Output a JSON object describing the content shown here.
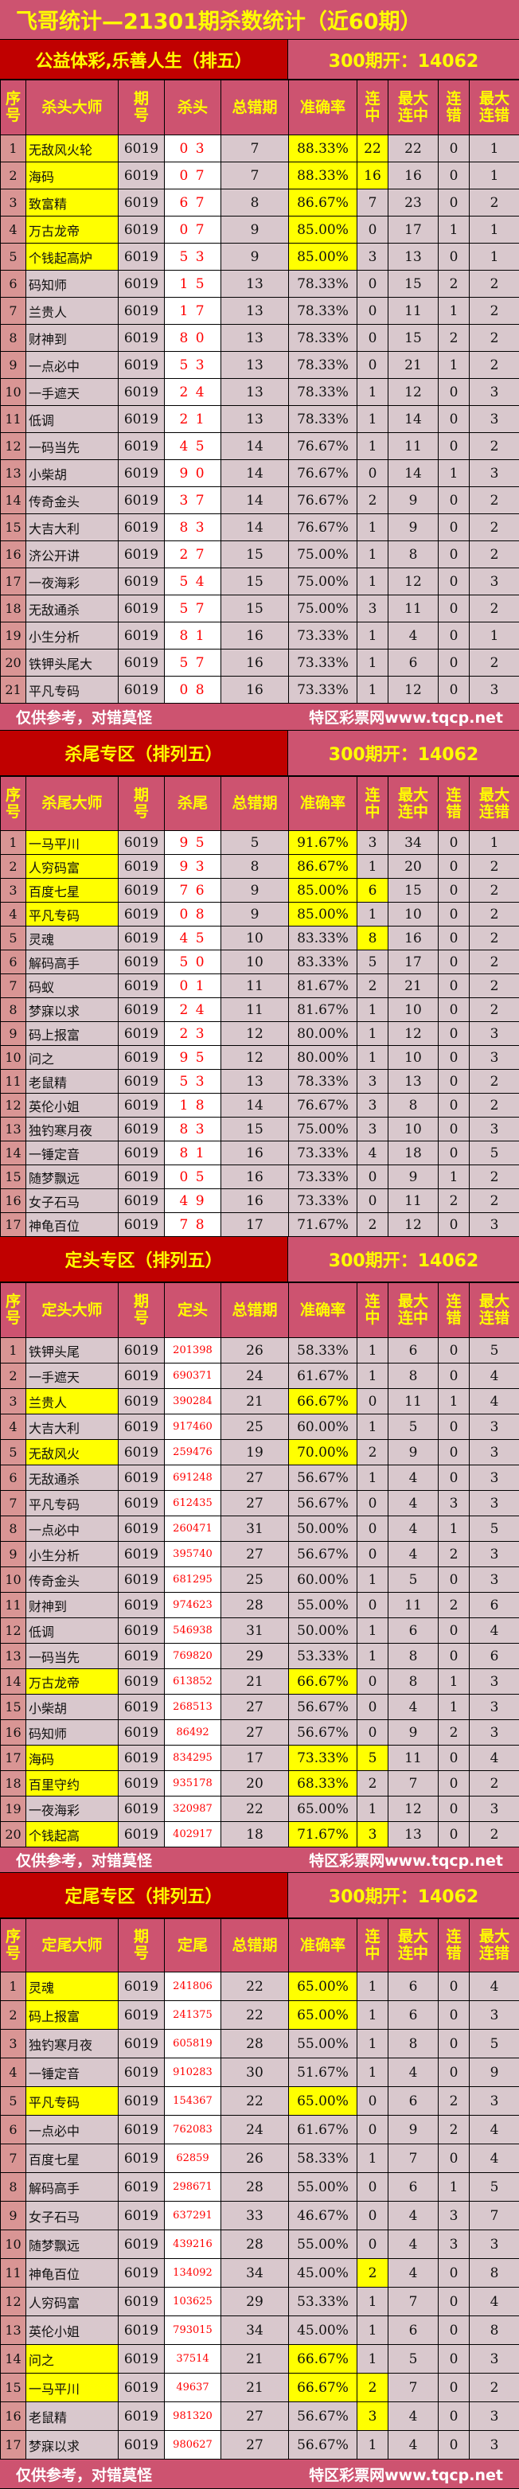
{
  "title": "飞哥统计—21301期杀数统计（近60期）",
  "footer": {
    "left": "仅供参考，对错莫怪",
    "right": "特区彩票网www.tqcp.net"
  },
  "colors": {
    "header_bg": "#cd5370",
    "section_bg": "#c00000",
    "header_text": "#ffff00",
    "highlight": "#ffff00",
    "number_text": "#ff0000"
  },
  "sections": [
    {
      "label": "公益体彩,乐善人生（排五）",
      "open": "300期开：14062",
      "headers": [
        "序号",
        "杀头大师",
        "期\n号",
        "杀头",
        "总错期",
        "准确率",
        "连\n中",
        "最大\n连中",
        "连\n错",
        "最大\n连错"
      ],
      "rows": [
        [
          "1",
          "无敌风火轮",
          "6019",
          "0 3",
          "7",
          "88.33%",
          "22",
          "22",
          "0",
          "1"
        ],
        [
          "2",
          "海码",
          "6019",
          "0 7",
          "7",
          "88.33%",
          "16",
          "16",
          "0",
          "1"
        ],
        [
          "3",
          "致富精",
          "6019",
          "6 7",
          "8",
          "86.67%",
          "7",
          "23",
          "0",
          "2"
        ],
        [
          "4",
          "万古龙帝",
          "6019",
          "0 7",
          "9",
          "85.00%",
          "0",
          "17",
          "1",
          "1"
        ],
        [
          "5",
          "个钱起高炉",
          "6019",
          "5 3",
          "9",
          "85.00%",
          "3",
          "13",
          "0",
          "1"
        ],
        [
          "6",
          "码知师",
          "6019",
          "1 5",
          "13",
          "78.33%",
          "0",
          "15",
          "2",
          "2"
        ],
        [
          "7",
          "兰贵人",
          "6019",
          "1 7",
          "13",
          "78.33%",
          "0",
          "11",
          "1",
          "2"
        ],
        [
          "8",
          "财神到",
          "6019",
          "8 0",
          "13",
          "78.33%",
          "0",
          "15",
          "2",
          "2"
        ],
        [
          "9",
          "一点必中",
          "6019",
          "5 3",
          "13",
          "78.33%",
          "0",
          "21",
          "1",
          "2"
        ],
        [
          "10",
          "一手遮天",
          "6019",
          "2 4",
          "13",
          "78.33%",
          "1",
          "12",
          "0",
          "3"
        ],
        [
          "11",
          "低调",
          "6019",
          "2 1",
          "13",
          "78.33%",
          "1",
          "14",
          "0",
          "3"
        ],
        [
          "12",
          "一码当先",
          "6019",
          "4 5",
          "14",
          "76.67%",
          "1",
          "11",
          "0",
          "2"
        ],
        [
          "13",
          "小柴胡",
          "6019",
          "9 0",
          "14",
          "76.67%",
          "0",
          "14",
          "1",
          "3"
        ],
        [
          "14",
          "传奇金头",
          "6019",
          "3 7",
          "14",
          "76.67%",
          "2",
          "9",
          "0",
          "2"
        ],
        [
          "15",
          "大吉大利",
          "6019",
          "8 3",
          "14",
          "76.67%",
          "1",
          "9",
          "0",
          "2"
        ],
        [
          "16",
          "济公开讲",
          "6019",
          "2 7",
          "15",
          "75.00%",
          "1",
          "8",
          "0",
          "2"
        ],
        [
          "17",
          "一夜海彩",
          "6019",
          "5 4",
          "15",
          "75.00%",
          "1",
          "12",
          "0",
          "3"
        ],
        [
          "18",
          "无敌通杀",
          "6019",
          "5 7",
          "15",
          "75.00%",
          "3",
          "11",
          "0",
          "2"
        ],
        [
          "19",
          "小生分析",
          "6019",
          "8 1",
          "16",
          "73.33%",
          "1",
          "4",
          "0",
          "1"
        ],
        [
          "20",
          "铁钾头尾大",
          "6019",
          "5 7",
          "16",
          "73.33%",
          "1",
          "6",
          "0",
          "2"
        ],
        [
          "21",
          "平凡专码",
          "6019",
          "0 8",
          "16",
          "73.33%",
          "1",
          "12",
          "0",
          "3"
        ]
      ],
      "highlights": [
        [
          1,
          5,
          6
        ],
        [
          1,
          5,
          6
        ],
        [
          1,
          5
        ],
        [
          1,
          5
        ],
        [
          1,
          5
        ]
      ]
    },
    {
      "label": "杀尾专区（排列五）",
      "open": "300期开：14062",
      "headers": [
        "序号",
        "杀尾大师",
        "期\n号",
        "杀尾",
        "总错期",
        "准确率",
        "连\n中",
        "最大\n连中",
        "连\n错",
        "最大\n连错"
      ],
      "rows": [
        [
          "1",
          "一马平川",
          "6019",
          "9 5",
          "5",
          "91.67%",
          "3",
          "34",
          "0",
          "1"
        ],
        [
          "2",
          "人穷码富",
          "6019",
          "9 3",
          "8",
          "86.67%",
          "1",
          "20",
          "0",
          "2"
        ],
        [
          "3",
          "百度七星",
          "6019",
          "7 6",
          "9",
          "85.00%",
          "6",
          "15",
          "0",
          "2"
        ],
        [
          "4",
          "平凡专码",
          "6019",
          "0 8",
          "9",
          "85.00%",
          "1",
          "10",
          "0",
          "2"
        ],
        [
          "5",
          "灵魂",
          "6019",
          "4 5",
          "10",
          "83.33%",
          "8",
          "16",
          "0",
          "2"
        ],
        [
          "6",
          "解码高手",
          "6019",
          "5 0",
          "10",
          "83.33%",
          "5",
          "17",
          "0",
          "2"
        ],
        [
          "7",
          "码蚁",
          "6019",
          "0 1",
          "11",
          "81.67%",
          "2",
          "21",
          "0",
          "2"
        ],
        [
          "8",
          "梦寐以求",
          "6019",
          "2 4",
          "11",
          "81.67%",
          "1",
          "10",
          "0",
          "2"
        ],
        [
          "9",
          "码上报富",
          "6019",
          "2 3",
          "12",
          "80.00%",
          "1",
          "12",
          "0",
          "3"
        ],
        [
          "10",
          "问之",
          "6019",
          "9 5",
          "12",
          "80.00%",
          "1",
          "10",
          "0",
          "3"
        ],
        [
          "11",
          "老鼠精",
          "6019",
          "5 3",
          "13",
          "78.33%",
          "3",
          "13",
          "0",
          "2"
        ],
        [
          "12",
          "英伦小姐",
          "6019",
          "1 8",
          "14",
          "76.67%",
          "3",
          "8",
          "0",
          "2"
        ],
        [
          "13",
          "独钓寒月夜",
          "6019",
          "8 3",
          "15",
          "75.00%",
          "3",
          "10",
          "0",
          "3"
        ],
        [
          "14",
          "一锤定音",
          "6019",
          "8 1",
          "16",
          "73.33%",
          "4",
          "18",
          "0",
          "5"
        ],
        [
          "15",
          "随梦飘远",
          "6019",
          "0 5",
          "16",
          "73.33%",
          "0",
          "9",
          "1",
          "2"
        ],
        [
          "16",
          "女子石马",
          "6019",
          "4 9",
          "16",
          "73.33%",
          "0",
          "11",
          "2",
          "2"
        ],
        [
          "17",
          "神龟百位",
          "6019",
          "7 8",
          "17",
          "71.67%",
          "2",
          "12",
          "0",
          "3"
        ]
      ],
      "highlights": [
        [
          1,
          5
        ],
        [
          1,
          5
        ],
        [
          1,
          5,
          6
        ],
        [
          1,
          5
        ],
        [
          6
        ]
      ]
    },
    {
      "label": "定头专区（排列五）",
      "open": "300期开：14062",
      "headers": [
        "序号",
        "定头大师",
        "期\n号",
        "定头",
        "总错期",
        "准确率",
        "连\n中",
        "最大\n连中",
        "连\n错",
        "最大\n连错"
      ],
      "rows": [
        [
          "1",
          "铁钾头尾",
          "6019",
          "201398",
          "26",
          "58.33%",
          "1",
          "6",
          "0",
          "5"
        ],
        [
          "2",
          "一手遮天",
          "6019",
          "690371",
          "24",
          "61.67%",
          "1",
          "8",
          "0",
          "4"
        ],
        [
          "3",
          "兰贵人",
          "6019",
          "390284",
          "21",
          "66.67%",
          "0",
          "11",
          "1",
          "4"
        ],
        [
          "4",
          "大吉大利",
          "6019",
          "917460",
          "25",
          "60.00%",
          "1",
          "5",
          "0",
          "3"
        ],
        [
          "5",
          "无敌风火",
          "6019",
          "259476",
          "19",
          "70.00%",
          "2",
          "9",
          "0",
          "3"
        ],
        [
          "6",
          "无敌通杀",
          "6019",
          "691248",
          "27",
          "56.67%",
          "1",
          "4",
          "0",
          "3"
        ],
        [
          "7",
          "平凡专码",
          "6019",
          "612435",
          "27",
          "56.67%",
          "0",
          "4",
          "3",
          "3"
        ],
        [
          "8",
          "一点必中",
          "6019",
          "260471",
          "31",
          "50.00%",
          "0",
          "4",
          "1",
          "5"
        ],
        [
          "9",
          "小生分析",
          "6019",
          "395740",
          "27",
          "56.67%",
          "0",
          "4",
          "2",
          "3"
        ],
        [
          "10",
          "传奇金头",
          "6019",
          "681295",
          "25",
          "60.00%",
          "1",
          "5",
          "0",
          "3"
        ],
        [
          "11",
          "财神到",
          "6019",
          "974623",
          "28",
          "55.00%",
          "0",
          "11",
          "2",
          "6"
        ],
        [
          "12",
          "低调",
          "6019",
          "546938",
          "31",
          "50.00%",
          "1",
          "6",
          "0",
          "4"
        ],
        [
          "13",
          "一码当先",
          "6019",
          "769820",
          "29",
          "53.33%",
          "1",
          "8",
          "0",
          "6"
        ],
        [
          "14",
          "万古龙帝",
          "6019",
          "613852",
          "21",
          "66.67%",
          "0",
          "8",
          "1",
          "3"
        ],
        [
          "15",
          "小柴胡",
          "6019",
          "268513",
          "27",
          "56.67%",
          "0",
          "4",
          "1",
          "3"
        ],
        [
          "16",
          "码知师",
          "6019",
          "86492",
          "27",
          "56.67%",
          "0",
          "9",
          "2",
          "3"
        ],
        [
          "17",
          "海码",
          "6019",
          "834295",
          "17",
          "73.33%",
          "5",
          "11",
          "0",
          "4"
        ],
        [
          "18",
          "百里守约",
          "6019",
          "935178",
          "20",
          "68.33%",
          "2",
          "7",
          "0",
          "2"
        ],
        [
          "19",
          "一夜海彩",
          "6019",
          "320987",
          "22",
          "65.00%",
          "1",
          "12",
          "0",
          "3"
        ],
        [
          "20",
          "个钱起高",
          "6019",
          "402917",
          "18",
          "71.67%",
          "3",
          "13",
          "0",
          "2"
        ]
      ],
      "highlights": [
        [],
        [],
        [
          1,
          5
        ],
        [],
        [
          1,
          5
        ],
        [],
        [],
        [],
        [],
        [],
        [],
        [],
        [],
        [
          1,
          5
        ],
        [],
        [],
        [
          1,
          5,
          6
        ],
        [
          1,
          5
        ],
        [],
        [
          1,
          5,
          6
        ]
      ]
    },
    {
      "label": "定尾专区（排列五）",
      "open": "300期开：14062",
      "headers": [
        "序号",
        "定尾大师",
        "期\n号",
        "定尾",
        "总错期",
        "准确率",
        "连\n中",
        "最大\n连中",
        "连\n错",
        "最大\n连错"
      ],
      "rows": [
        [
          "1",
          "灵魂",
          "6019",
          "241806",
          "22",
          "65.00%",
          "1",
          "6",
          "0",
          "4"
        ],
        [
          "2",
          "码上报富",
          "6019",
          "241375",
          "22",
          "65.00%",
          "1",
          "6",
          "0",
          "3"
        ],
        [
          "3",
          "独钓寒月夜",
          "6019",
          "605819",
          "28",
          "55.00%",
          "1",
          "8",
          "0",
          "5"
        ],
        [
          "4",
          "一锤定音",
          "6019",
          "910283",
          "30",
          "51.67%",
          "1",
          "4",
          "0",
          "9"
        ],
        [
          "5",
          "平凡专码",
          "6019",
          "154367",
          "22",
          "65.00%",
          "0",
          "6",
          "2",
          "3"
        ],
        [
          "6",
          "一点必中",
          "6019",
          "762083",
          "24",
          "61.67%",
          "0",
          "9",
          "2",
          "4"
        ],
        [
          "7",
          "百度七星",
          "6019",
          "62859",
          "26",
          "58.33%",
          "1",
          "7",
          "0",
          "4"
        ],
        [
          "8",
          "解码高手",
          "6019",
          "298671",
          "28",
          "55.00%",
          "0",
          "6",
          "1",
          "5"
        ],
        [
          "9",
          "女子石马",
          "6019",
          "637291",
          "33",
          "46.67%",
          "0",
          "4",
          "3",
          "7"
        ],
        [
          "10",
          "随梦飘远",
          "6019",
          "439216",
          "28",
          "55.00%",
          "0",
          "4",
          "3",
          "3"
        ],
        [
          "11",
          "神龟百位",
          "6019",
          "134092",
          "34",
          "45.00%",
          "2",
          "4",
          "0",
          "8"
        ],
        [
          "12",
          "人穷码富",
          "6019",
          "103625",
          "29",
          "53.33%",
          "1",
          "7",
          "0",
          "4"
        ],
        [
          "13",
          "英伦小姐",
          "6019",
          "793015",
          "34",
          "45.00%",
          "1",
          "6",
          "0",
          "8"
        ],
        [
          "14",
          "问之",
          "6019",
          "37514",
          "21",
          "66.67%",
          "1",
          "5",
          "0",
          "3"
        ],
        [
          "15",
          "一马平川",
          "6019",
          "49637",
          "21",
          "66.67%",
          "2",
          "7",
          "0",
          "2"
        ],
        [
          "16",
          "老鼠精",
          "6019",
          "981320",
          "27",
          "56.67%",
          "3",
          "4",
          "0",
          "3"
        ],
        [
          "17",
          "梦寐以求",
          "6019",
          "980627",
          "27",
          "56.67%",
          "1",
          "4",
          "0",
          "3"
        ]
      ],
      "highlights": [
        [
          1,
          5
        ],
        [
          1,
          5
        ],
        [],
        [],
        [
          1,
          5
        ],
        [],
        [],
        [],
        [],
        [],
        [
          6
        ],
        [],
        [],
        [
          1,
          5
        ],
        [
          1,
          5,
          6
        ],
        [
          6
        ]
      ]
    }
  ]
}
